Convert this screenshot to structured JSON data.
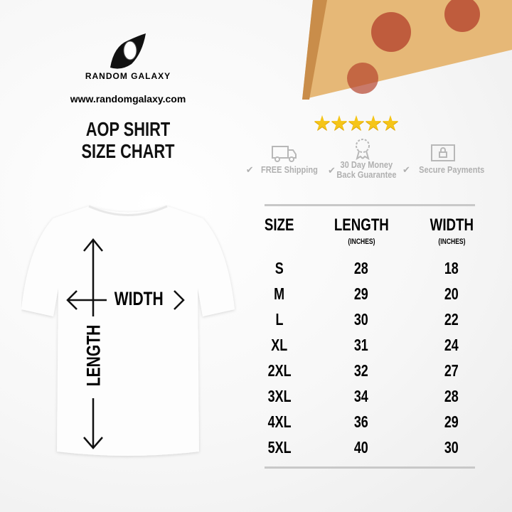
{
  "brand": {
    "name": "RANDOM GALAXY",
    "url": "www.randomgalaxy.com"
  },
  "title": {
    "line1": "AOP SHIRT",
    "line2": "SIZE CHART"
  },
  "rating": {
    "stars": 5,
    "max": 5,
    "glyph": "★★★★★",
    "color": "#f5c518"
  },
  "features": [
    {
      "icon": "truck-icon",
      "label": "FREE Shipping"
    },
    {
      "icon": "award-ribbon-icon",
      "label_line1": "30 Day Money",
      "label_line2": "Back Guarantee"
    },
    {
      "icon": "lock-icon",
      "label": "Secure Payments"
    }
  ],
  "check_glyph": "✔",
  "diagram": {
    "width_label": "WIDTH",
    "length_label": "LENGTH"
  },
  "table": {
    "headers": [
      {
        "label": "SIZE",
        "sub": ""
      },
      {
        "label": "LENGTH",
        "sub": "(INCHES)"
      },
      {
        "label": "WIDTH",
        "sub": "(INCHES)"
      }
    ],
    "rows": [
      [
        "S",
        "28",
        "18"
      ],
      [
        "M",
        "29",
        "20"
      ],
      [
        "L",
        "30",
        "22"
      ],
      [
        "XL",
        "31",
        "24"
      ],
      [
        "2XL",
        "32",
        "27"
      ],
      [
        "3XL",
        "34",
        "28"
      ],
      [
        "4XL",
        "36",
        "29"
      ],
      [
        "5XL",
        "40",
        "30"
      ]
    ]
  }
}
